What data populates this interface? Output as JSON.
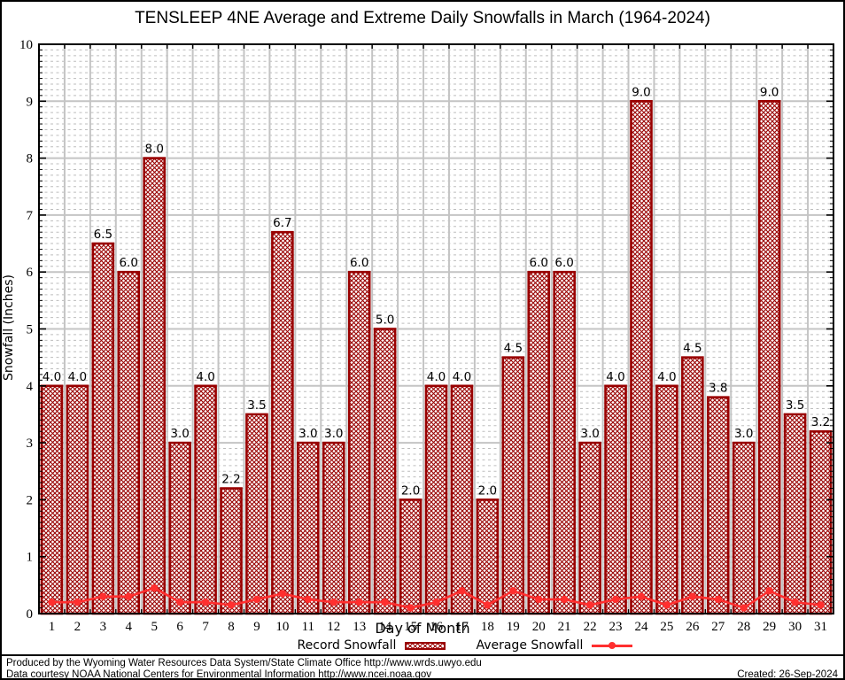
{
  "title": "TENSLEEP 4NE Average and Extreme Daily Snowfalls in March (1964-2024)",
  "y_axis": {
    "label": "Snowfall (Inches)",
    "min": 0,
    "max": 10,
    "major_tick_step": 1,
    "minor_tick_step": 0.1
  },
  "x_axis": {
    "label": "Day of Month"
  },
  "legend": {
    "record_label": "Record Snowfall",
    "average_label": "Average Snowfall"
  },
  "footer": {
    "line1": "Produced by the Wyoming Water Resources Data System/State Climate Office http://www.wrds.uwyo.edu",
    "line2": "Data courtesy NOAA National Centers for Environmental Information http://www.ncei.noaa.gov",
    "created": "Created: 26-Sep-2024"
  },
  "colors": {
    "bar_outline": "#990000",
    "bar_hatch": "#990000",
    "average_line": "#ff2f2f",
    "grid_major": "#c4c4c4",
    "grid_minor": "#bdbdbd",
    "frame": "#000000",
    "text": "#000000"
  },
  "chart_data": {
    "type": "bar",
    "title": "TENSLEEP 4NE Average and Extreme Daily Snowfalls in March (1964-2024)",
    "xlabel": "Day of Month",
    "ylabel": "Snowfall (Inches)",
    "ylim": [
      0,
      10
    ],
    "grid": true,
    "legend_position": "bottom",
    "categories": [
      1,
      2,
      3,
      4,
      5,
      6,
      7,
      8,
      9,
      10,
      11,
      12,
      13,
      14,
      15,
      16,
      17,
      18,
      19,
      20,
      21,
      22,
      23,
      24,
      25,
      26,
      27,
      28,
      29,
      30,
      31
    ],
    "series": [
      {
        "name": "Record Snowfall",
        "type": "bar",
        "values": [
          4.0,
          4.0,
          6.5,
          6.0,
          8.0,
          3.0,
          4.0,
          2.2,
          3.5,
          6.7,
          3.0,
          3.0,
          6.0,
          5.0,
          2.0,
          4.0,
          4.0,
          2.0,
          4.5,
          6.0,
          6.0,
          3.0,
          4.0,
          9.0,
          4.0,
          4.5,
          3.8,
          3.0,
          9.0,
          3.5,
          3.2
        ],
        "labels": [
          "4.0",
          "4.0",
          "6.5",
          "6.0",
          "8.0",
          "3.0",
          "4.0",
          "2.2",
          "3.5",
          "6.7",
          "3.0",
          "3.0",
          "6.0",
          "5.0",
          "2.0",
          "4.0",
          "4.0",
          "2.0",
          "4.5",
          "6.0",
          "6.0",
          "3.0",
          "4.0",
          "9.0",
          "4.0",
          "4.5",
          "3.8",
          "3.0",
          "9.0",
          "3.5",
          "3.2"
        ]
      },
      {
        "name": "Average Snowfall",
        "type": "line",
        "values": [
          0.2,
          0.2,
          0.3,
          0.3,
          0.45,
          0.2,
          0.2,
          0.15,
          0.25,
          0.35,
          0.25,
          0.2,
          0.2,
          0.2,
          0.1,
          0.2,
          0.4,
          0.15,
          0.4,
          0.25,
          0.25,
          0.15,
          0.25,
          0.3,
          0.15,
          0.3,
          0.25,
          0.1,
          0.4,
          0.2,
          0.15
        ]
      }
    ]
  }
}
